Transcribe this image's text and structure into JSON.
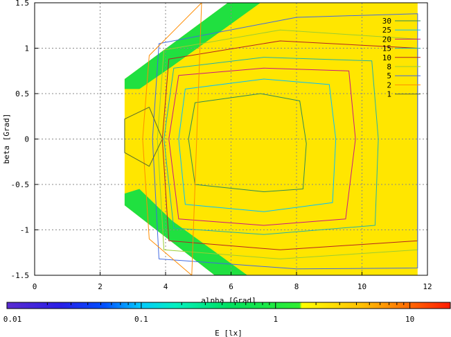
{
  "chart_data": {
    "type": "heatmap",
    "xlabel": "alpha [Grad]",
    "ylabel": "beta [Grad]",
    "colorbar_label": "E [lx]",
    "xlim": [
      0,
      12
    ],
    "ylim": [
      1.5,
      -1.5
    ],
    "x_ticks": [
      "0",
      "2",
      "4",
      "6",
      "8",
      "10",
      "12"
    ],
    "y_ticks": [
      "-1.5",
      "-1",
      "-0.5",
      "0",
      "0.5",
      "1",
      "1.5"
    ],
    "colorbar_scale": "log",
    "colorbar_range": [
      0.01,
      20
    ],
    "colorbar_ticks": [
      "0.01",
      "0.1",
      "1",
      "10"
    ],
    "grid": true,
    "legend_position": "top-right",
    "contour_levels": [
      {
        "label": "30",
        "value": 30,
        "color": "#2e8b57"
      },
      {
        "label": "25",
        "value": 25,
        "color": "#00bfff"
      },
      {
        "label": "20",
        "value": 20,
        "color": "#c71585"
      },
      {
        "label": "15",
        "value": 15,
        "color": "#20b2aa"
      },
      {
        "label": "10",
        "value": 10,
        "color": "#b22222"
      },
      {
        "label": "8",
        "value": 8,
        "color": "#9acd32"
      },
      {
        "label": "5",
        "value": 5,
        "color": "#4169e1"
      },
      {
        "label": "2",
        "value": 2,
        "color": "#ff8c00"
      },
      {
        "label": "1",
        "value": 1,
        "color": "#556b2f"
      }
    ]
  }
}
